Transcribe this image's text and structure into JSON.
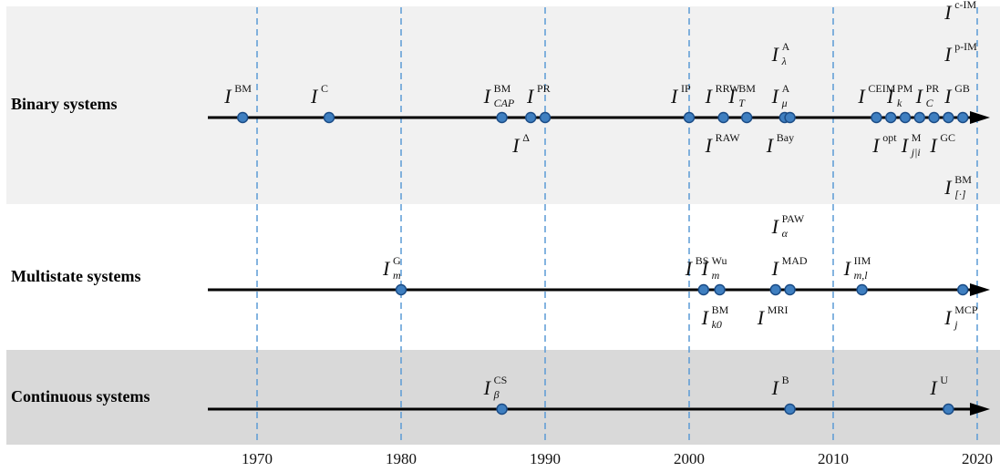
{
  "colors": {
    "binary_band": "#f1f1f1",
    "multistate_band": "#ffffff",
    "continuous_band": "#d9d9d9",
    "axis": "#000000",
    "marker_fill": "#3f7fc0",
    "marker_stroke": "#1b4c86",
    "year_line": "#5b9bd5"
  },
  "rows": [
    {
      "label": "Binary systems",
      "points": [
        {
          "year": 1969,
          "sup": "BM",
          "side": "above"
        },
        {
          "year": 1975,
          "sup": "C",
          "side": "above"
        },
        {
          "year": 1987,
          "sup": "BM",
          "sub": "CAP",
          "side": "above"
        },
        {
          "year": 1989,
          "sup": "Δ",
          "side": "below"
        },
        {
          "year": 1990,
          "sup": "PR",
          "side": "above"
        },
        {
          "year": 2000,
          "sup": "IP",
          "side": "above"
        },
        {
          "year": 2002,
          "sup": "RRW",
          "side": "above"
        },
        {
          "year": 2002,
          "sup": "RAW",
          "side": "below"
        },
        {
          "year": 2004,
          "sup": "BM",
          "sub": "T",
          "side": "above"
        },
        {
          "year": 2006,
          "sup": "Bay",
          "side": "below"
        },
        {
          "year": 2007,
          "sup": "A",
          "sub": "μ",
          "side": "above"
        },
        {
          "year": 2007,
          "sup": "A",
          "sub": "λ",
          "side": "above2"
        },
        {
          "year": 2013,
          "sup": "CEIM",
          "side": "above"
        },
        {
          "year": 2014,
          "sup": "opt",
          "side": "below"
        },
        {
          "year": 2015,
          "sup": "PM",
          "sub": "k",
          "side": "above"
        },
        {
          "year": 2016,
          "sup": "M",
          "sub": "j|i",
          "side": "below"
        },
        {
          "year": 2017,
          "sup": "PR",
          "sub": "C",
          "side": "above"
        },
        {
          "year": 2018,
          "sup": "GC",
          "side": "below"
        },
        {
          "year": 2019,
          "sup": "GB",
          "side": "above"
        },
        {
          "year": 2019,
          "sup": "BM",
          "sub": "[·]",
          "side": "below2"
        },
        {
          "year": 2019,
          "sup": "p-IM",
          "side": "above2"
        },
        {
          "year": 2019,
          "sup": "c-IM",
          "side": "above3"
        }
      ]
    },
    {
      "label": "Multistate systems",
      "points": [
        {
          "year": 1980,
          "sup": "G",
          "sub": "m",
          "side": "above"
        },
        {
          "year": 2001,
          "sup": "BS",
          "side": "above"
        },
        {
          "year": 2002,
          "sup": "Wu",
          "sub": "m",
          "side": "above"
        },
        {
          "year": 2002,
          "sup": "BM",
          "sub": "k0",
          "side": "below"
        },
        {
          "year": 2006,
          "sup": "MRI",
          "side": "below"
        },
        {
          "year": 2007,
          "sup": "MAD",
          "side": "above"
        },
        {
          "year": 2007,
          "sup": "PAW",
          "sub": "α",
          "side": "above2"
        },
        {
          "year": 2012,
          "sup": "IIM",
          "sub": "m,l",
          "side": "above"
        },
        {
          "year": 2019,
          "sup": "MCP",
          "sub": "j",
          "side": "below"
        }
      ]
    },
    {
      "label": "Continuous systems",
      "points": [
        {
          "year": 1987,
          "sup": "CS",
          "sub": "β",
          "side": "above"
        },
        {
          "year": 2007,
          "sup": "B",
          "side": "above"
        },
        {
          "year": 2018,
          "sup": "U",
          "side": "above"
        }
      ]
    }
  ],
  "years": [
    "1970",
    "1980",
    "1990",
    "2000",
    "2010",
    "2020"
  ],
  "measure_symbol": "I"
}
